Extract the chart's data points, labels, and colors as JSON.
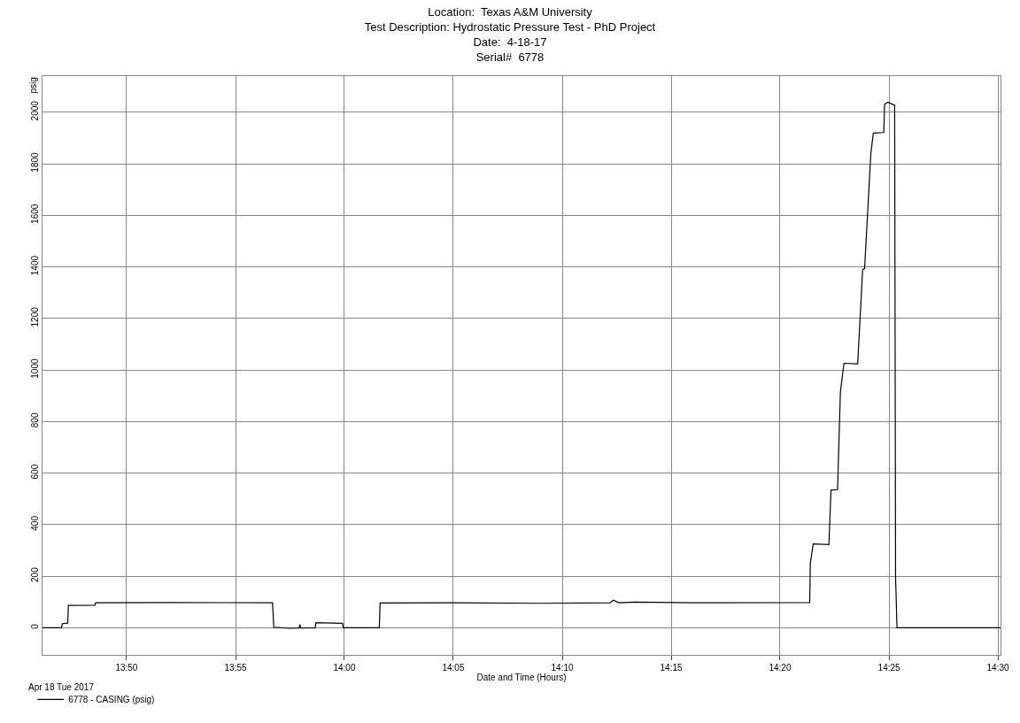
{
  "chart_data": {
    "type": "line",
    "title": "Location:  Texas A&M University\nTest Description: Hydrostatic Pressure Test - PhD Project\nDate:  4-18-17\nSerial#  6778",
    "xlabel": "Date and Time (Hours)",
    "ylabel": "psig",
    "annotations": [
      "Apr 18 Tue 2017"
    ],
    "series": [
      {
        "name": "6778 - CASING (psig)",
        "color": "#000000",
        "x": [
          13.769,
          13.7835,
          13.7842,
          13.7883,
          13.7888,
          13.8092,
          13.8097,
          13.8667,
          13.945,
          13.946,
          13.9583,
          13.9653,
          13.966,
          13.9667,
          13.9777,
          13.9782,
          13.9985,
          13.9992,
          14.0267,
          14.0273,
          14.0833,
          14.15,
          14.2033,
          14.2057,
          14.21,
          14.2217,
          14.2667,
          14.356,
          14.3565,
          14.3587,
          14.3707,
          14.3723,
          14.3773,
          14.3795,
          14.3822,
          14.3927,
          14.3965,
          14.398,
          14.4028,
          14.4047,
          14.4127,
          14.4133,
          14.4158,
          14.421,
          14.4217,
          14.4228,
          14.502
        ],
        "values": [
          0,
          0,
          16,
          18,
          87,
          88,
          97,
          98,
          97,
          2,
          -2,
          -1,
          12,
          -1,
          0,
          20,
          17,
          0,
          0,
          96,
          97,
          95,
          97,
          107,
          97,
          100,
          97,
          98,
          251,
          325,
          323,
          534,
          536,
          915,
          1026,
          1024,
          1389,
          1394,
          1841,
          1919,
          1921,
          2031,
          2039,
          2027,
          196,
          0,
          0
        ]
      }
    ],
    "xlim": [
      13.769,
      14.502
    ],
    "xticks": [
      {
        "value": 13.8333,
        "label": "13:50"
      },
      {
        "value": 13.9167,
        "label": "13:55"
      },
      {
        "value": 14.0,
        "label": "14:00"
      },
      {
        "value": 14.0833,
        "label": "14:05"
      },
      {
        "value": 14.1667,
        "label": "14:10"
      },
      {
        "value": 14.25,
        "label": "14:15"
      },
      {
        "value": 14.3333,
        "label": "14:20"
      },
      {
        "value": 14.4167,
        "label": "14:25"
      },
      {
        "value": 14.5,
        "label": "14:30"
      }
    ],
    "ylim": [
      -105,
      2140
    ],
    "yticks": [
      0,
      200,
      400,
      600,
      800,
      1000,
      1200,
      1400,
      1600,
      1800,
      2000
    ],
    "grid": true,
    "legend": "bottom left",
    "marker": "none",
    "line_style": "solid"
  }
}
